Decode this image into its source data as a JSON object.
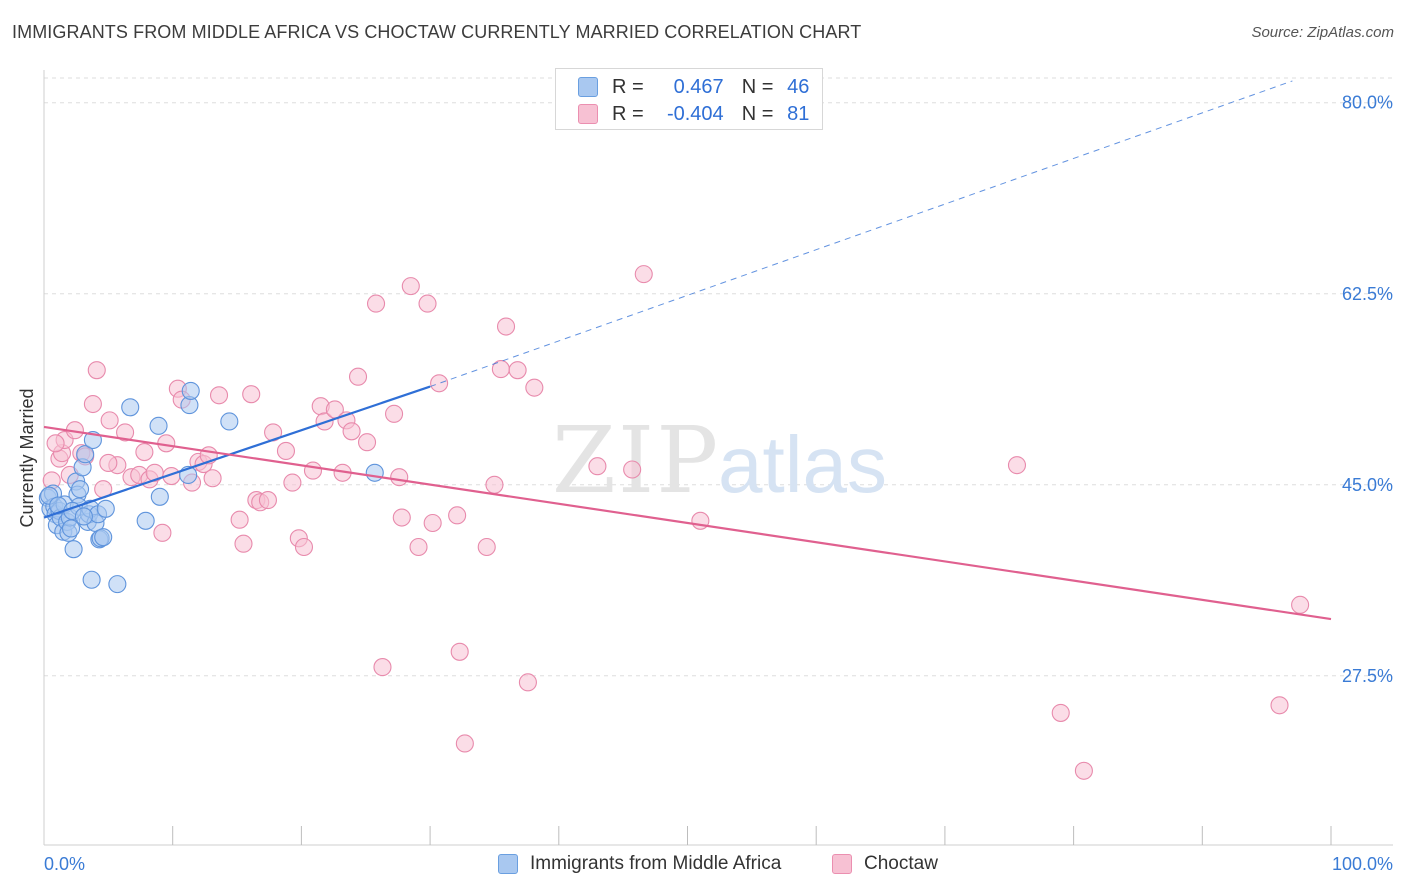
{
  "header": {
    "title": "IMMIGRANTS FROM MIDDLE AFRICA VS CHOCTAW CURRENTLY MARRIED CORRELATION CHART",
    "source": "Source: ZipAtlas.com"
  },
  "legend": {
    "r_label": "R =",
    "n_label": "N =",
    "rows": [
      {
        "r": "0.467",
        "n": "46",
        "color": "#a9c8f0",
        "border": "#6a9fe0"
      },
      {
        "r": "-0.404",
        "n": "81",
        "color": "#f7c1d3",
        "border": "#eb8fb0"
      }
    ]
  },
  "watermark": {
    "zip": "ZIP",
    "atlas": "atlas"
  },
  "colors": {
    "blue_fill": "#a9c8f0",
    "blue_stroke": "#5f94dc",
    "blue_line": "#2f6fd6",
    "pink_fill": "#f7c1d3",
    "pink_stroke": "#e88aac",
    "pink_line": "#e0608f",
    "tick_label": "#3a7bd5",
    "grid": "#dddddd"
  },
  "chart_data": {
    "type": "scatter",
    "title": "IMMIGRANTS FROM MIDDLE AFRICA VS CHOCTAW CURRENTLY MARRIED CORRELATION CHART",
    "xlabel": "",
    "ylabel": "Currently Married",
    "xlim": [
      0,
      100
    ],
    "ylim": [
      12,
      83
    ],
    "x_tick_labels": [
      "0.0%",
      "100.0%"
    ],
    "y_ticks": [
      27.5,
      45.0,
      62.5,
      80.0
    ],
    "y_tick_labels": [
      "27.5%",
      "45.0%",
      "62.5%",
      "80.0%"
    ],
    "grid": true,
    "legend_position": "top-center",
    "series": [
      {
        "name": "Immigrants from Middle Africa",
        "color": "#a9c8f0",
        "points": [
          [
            0.3,
            43.8
          ],
          [
            0.5,
            42.8
          ],
          [
            0.7,
            44.2
          ],
          [
            0.8,
            43.0
          ],
          [
            0.9,
            42.3
          ],
          [
            1.0,
            41.3
          ],
          [
            1.2,
            42.6
          ],
          [
            1.3,
            42.0
          ],
          [
            1.5,
            40.7
          ],
          [
            1.6,
            43.2
          ],
          [
            1.8,
            41.6
          ],
          [
            1.9,
            40.6
          ],
          [
            2.0,
            42.0
          ],
          [
            2.1,
            41.0
          ],
          [
            2.3,
            39.1
          ],
          [
            2.5,
            45.3
          ],
          [
            2.6,
            44.1
          ],
          [
            2.7,
            43.0
          ],
          [
            2.8,
            44.6
          ],
          [
            3.0,
            46.6
          ],
          [
            3.2,
            47.8
          ],
          [
            3.4,
            41.6
          ],
          [
            3.5,
            42.3
          ],
          [
            3.6,
            42.8
          ],
          [
            3.8,
            49.1
          ],
          [
            3.7,
            36.3
          ],
          [
            4.0,
            41.5
          ],
          [
            4.2,
            42.3
          ],
          [
            4.3,
            40.0
          ],
          [
            4.4,
            40.1
          ],
          [
            4.6,
            40.2
          ],
          [
            4.8,
            42.8
          ],
          [
            5.7,
            35.9
          ],
          [
            6.7,
            52.1
          ],
          [
            7.9,
            41.7
          ],
          [
            8.9,
            50.4
          ],
          [
            9.0,
            43.9
          ],
          [
            11.2,
            45.9
          ],
          [
            11.3,
            52.3
          ],
          [
            11.4,
            53.6
          ],
          [
            14.4,
            50.8
          ],
          [
            25.7,
            46.1
          ],
          [
            0.4,
            44.0
          ],
          [
            1.1,
            43.1
          ],
          [
            2.2,
            42.6
          ],
          [
            3.1,
            42.1
          ]
        ]
      },
      {
        "name": "Choctaw",
        "color": "#f7c1d3",
        "points": [
          [
            0.6,
            45.4
          ],
          [
            1.2,
            47.4
          ],
          [
            1.4,
            47.9
          ],
          [
            1.6,
            49.1
          ],
          [
            2.0,
            45.9
          ],
          [
            2.4,
            50.0
          ],
          [
            2.9,
            47.9
          ],
          [
            3.2,
            47.6
          ],
          [
            3.8,
            52.4
          ],
          [
            4.1,
            55.5
          ],
          [
            4.6,
            44.6
          ],
          [
            5.1,
            50.9
          ],
          [
            5.7,
            46.8
          ],
          [
            6.3,
            49.8
          ],
          [
            6.8,
            45.7
          ],
          [
            7.4,
            45.9
          ],
          [
            7.8,
            48.0
          ],
          [
            8.2,
            45.5
          ],
          [
            8.6,
            46.1
          ],
          [
            9.2,
            40.6
          ],
          [
            9.5,
            48.8
          ],
          [
            9.9,
            45.8
          ],
          [
            10.4,
            53.8
          ],
          [
            10.7,
            52.8
          ],
          [
            11.5,
            45.2
          ],
          [
            12.0,
            47.1
          ],
          [
            12.4,
            46.9
          ],
          [
            12.8,
            47.7
          ],
          [
            13.1,
            45.6
          ],
          [
            13.6,
            53.2
          ],
          [
            15.2,
            41.8
          ],
          [
            15.5,
            39.6
          ],
          [
            16.1,
            53.3
          ],
          [
            16.5,
            43.6
          ],
          [
            16.8,
            43.4
          ],
          [
            17.4,
            43.6
          ],
          [
            17.8,
            49.8
          ],
          [
            18.8,
            48.1
          ],
          [
            19.3,
            45.2
          ],
          [
            19.8,
            40.1
          ],
          [
            20.2,
            39.3
          ],
          [
            20.9,
            46.3
          ],
          [
            21.5,
            52.2
          ],
          [
            21.8,
            50.8
          ],
          [
            22.6,
            51.9
          ],
          [
            23.2,
            46.1
          ],
          [
            23.5,
            50.9
          ],
          [
            23.9,
            49.9
          ],
          [
            24.4,
            54.9
          ],
          [
            25.1,
            48.9
          ],
          [
            25.8,
            61.6
          ],
          [
            26.3,
            28.3
          ],
          [
            27.2,
            51.5
          ],
          [
            27.6,
            45.7
          ],
          [
            27.8,
            42.0
          ],
          [
            28.5,
            63.2
          ],
          [
            29.1,
            39.3
          ],
          [
            29.8,
            61.6
          ],
          [
            30.2,
            41.5
          ],
          [
            30.7,
            54.3
          ],
          [
            32.1,
            42.2
          ],
          [
            32.3,
            29.7
          ],
          [
            32.7,
            21.3
          ],
          [
            34.4,
            39.3
          ],
          [
            35.0,
            45.0
          ],
          [
            35.5,
            55.6
          ],
          [
            35.9,
            59.5
          ],
          [
            36.8,
            55.5
          ],
          [
            37.6,
            26.9
          ],
          [
            38.1,
            53.9
          ],
          [
            43.0,
            46.7
          ],
          [
            45.7,
            46.4
          ],
          [
            46.6,
            64.3
          ],
          [
            51.0,
            41.7
          ],
          [
            75.6,
            46.8
          ],
          [
            79.0,
            24.1
          ],
          [
            80.8,
            18.8
          ],
          [
            96.0,
            24.8
          ],
          [
            97.6,
            34.0
          ],
          [
            0.9,
            48.8
          ],
          [
            5.0,
            47.0
          ]
        ]
      }
    ],
    "trendlines": [
      {
        "series": "Immigrants from Middle Africa",
        "x": [
          0,
          30
        ],
        "y": [
          42.0,
          54.0
        ],
        "extend_dashed_to_x": 97,
        "extend_dashed_to_y": 82.0
      },
      {
        "series": "Choctaw",
        "x": [
          0,
          100
        ],
        "y": [
          50.3,
          32.7
        ]
      }
    ]
  }
}
